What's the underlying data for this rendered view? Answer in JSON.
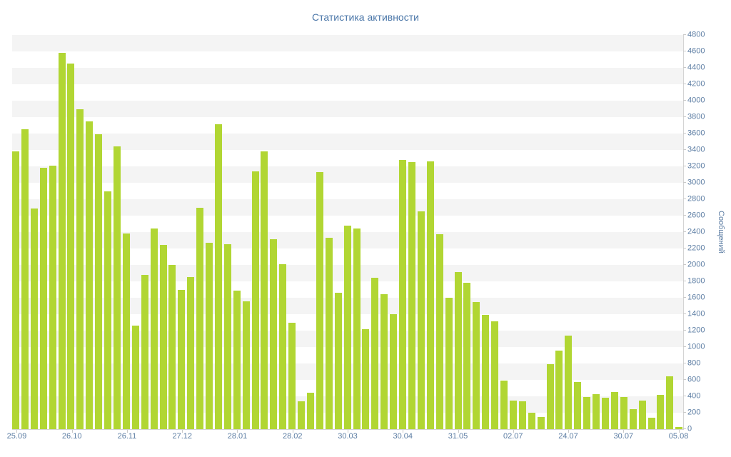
{
  "chart_data": {
    "type": "bar",
    "title": "Статистика активности",
    "ylabel": "Сообщений",
    "xlabel": "",
    "ylim": [
      0,
      4800
    ],
    "y_tick_step": 200,
    "legend": "none",
    "grid": "alternating-horizontal-bands",
    "bar_color": "#b1d633",
    "band_color": "#f4f4f4",
    "title_color": "#4a76a8",
    "axis_label_color": "#5c7da3",
    "axis_line_color": "#d4d4d4",
    "categories": [
      "25.09",
      "26.10",
      "26.11",
      "27.12",
      "28.01",
      "28.02",
      "30.03",
      "30.04",
      "31.05",
      "02.07",
      "24.07",
      "30.07",
      "05.08"
    ],
    "x_label_every_n_bars": 6,
    "values": [
      3380,
      3650,
      2690,
      3180,
      3210,
      4580,
      4450,
      3900,
      3750,
      3590,
      2900,
      3440,
      2380,
      1260,
      1880,
      2440,
      2240,
      2000,
      1700,
      1850,
      2700,
      2270,
      3710,
      2250,
      1690,
      1560,
      3140,
      3380,
      2310,
      2010,
      1300,
      340,
      440,
      3130,
      2330,
      1660,
      2480,
      2440,
      1220,
      1840,
      1640,
      1400,
      3280,
      3250,
      2650,
      3260,
      2370,
      1600,
      1910,
      1780,
      1550,
      1390,
      1310,
      590,
      350,
      340,
      200,
      150,
      790,
      960,
      1140,
      570,
      390,
      430,
      380,
      450,
      390,
      240,
      350,
      140,
      420,
      640,
      30
    ]
  }
}
